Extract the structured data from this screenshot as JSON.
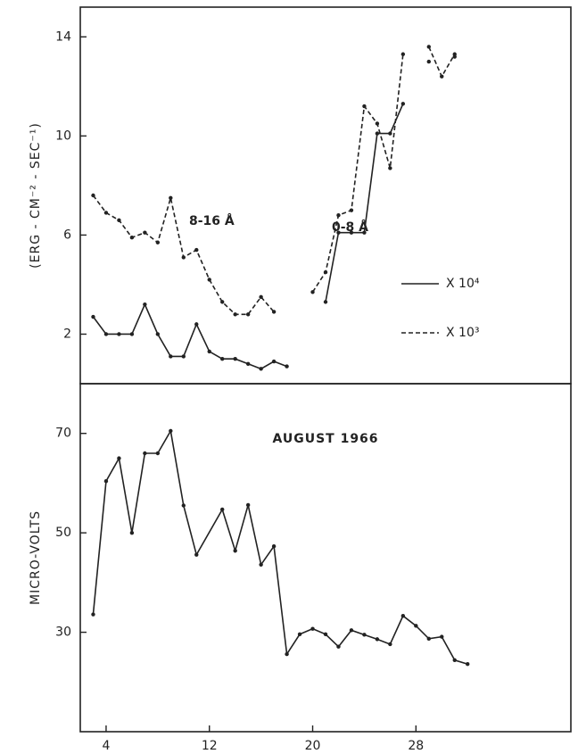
{
  "chart_data": [
    {
      "type": "line",
      "ylabel": "(ERG - CM⁻² - SEC⁻¹)",
      "xlim": [
        2,
        40
      ],
      "ylim": [
        0,
        15.2
      ],
      "yticks": [
        2,
        6,
        10,
        14
      ],
      "x": [
        3,
        4,
        5,
        6,
        7,
        8,
        9,
        10,
        11,
        12,
        13,
        14,
        15,
        16,
        17,
        18,
        19,
        20,
        21,
        22,
        23,
        24,
        25,
        26,
        27,
        28,
        29,
        30,
        31
      ],
      "series": [
        {
          "name": "X 10⁴",
          "color": "#222222",
          "dash": false,
          "values": [
            2.7,
            2.0,
            2.0,
            2.0,
            3.2,
            2.0,
            1.1,
            1.1,
            2.4,
            1.3,
            1.0,
            1.0,
            0.8,
            0.6,
            0.9,
            0.7,
            null,
            null,
            3.3,
            6.1,
            6.1,
            6.1,
            10.1,
            10.1,
            11.3,
            null,
            13.0,
            null,
            13.2
          ]
        },
        {
          "name": "X 10³",
          "color": "#222222",
          "dash": true,
          "values": [
            7.6,
            6.9,
            6.6,
            5.9,
            6.1,
            5.7,
            7.5,
            5.1,
            5.4,
            4.2,
            3.3,
            2.8,
            2.8,
            3.5,
            2.9,
            null,
            null,
            3.7,
            4.5,
            6.8,
            7.0,
            11.2,
            10.5,
            8.7,
            13.3,
            null,
            13.6,
            12.4,
            13.3
          ]
        }
      ],
      "annotations": [
        "8-16 Å",
        "0-8 Å"
      ]
    },
    {
      "type": "line",
      "ylabel": "MICRO-VOLTS",
      "annotation": "AUGUST 1966",
      "xlim": [
        2,
        40
      ],
      "ylim": [
        10,
        80
      ],
      "xticks": [
        4,
        12,
        20,
        28
      ],
      "yticks": [
        30,
        50,
        70
      ],
      "x": [
        3,
        4,
        5,
        6,
        7,
        8,
        9,
        10,
        11,
        13,
        14,
        15,
        16,
        17,
        18,
        19,
        20,
        21,
        22,
        23,
        24,
        25,
        26,
        27,
        28,
        29,
        30,
        31,
        32
      ],
      "series": [
        {
          "color": "#222222",
          "dash": false,
          "values": [
            33.6,
            60.4,
            65,
            50,
            66,
            66,
            70.5,
            55.5,
            45.6,
            54.7,
            46.4,
            55.6,
            43.6,
            47.3,
            25.6,
            29.6,
            30.7,
            29.6,
            27.1,
            30.4,
            29.5,
            28.6,
            27.6,
            33.3,
            31.3,
            28.7,
            29.1,
            24.4,
            23.6
          ]
        }
      ]
    }
  ]
}
